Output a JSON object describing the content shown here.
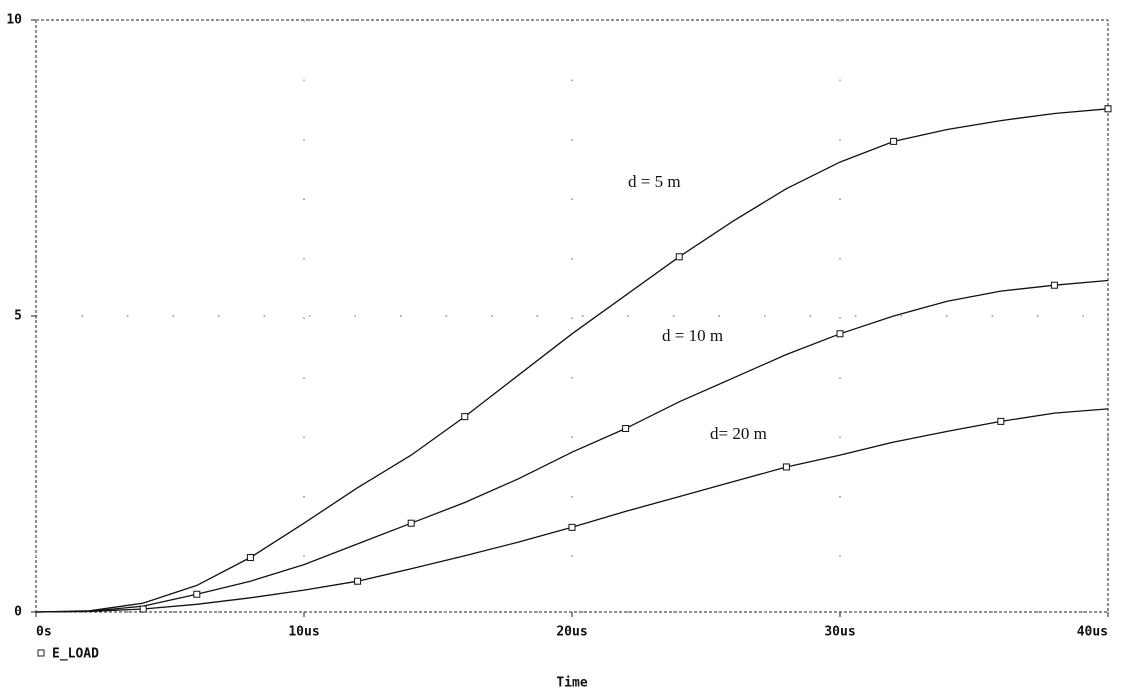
{
  "chart_data": {
    "type": "line",
    "x_label": "Time",
    "legend_label": "E_LOAD",
    "x": [
      0,
      2,
      4,
      6,
      8,
      10,
      12,
      14,
      16,
      18,
      20,
      22,
      24,
      26,
      28,
      30,
      32,
      34,
      36,
      38,
      40
    ],
    "series": [
      {
        "name": "d = 5 m",
        "color": "#111111",
        "values": [
          0,
          0.02,
          0.15,
          0.45,
          0.92,
          1.5,
          2.1,
          2.65,
          3.3,
          4.0,
          4.7,
          5.35,
          6.0,
          6.6,
          7.15,
          7.6,
          7.95,
          8.15,
          8.3,
          8.42,
          8.5
        ]
      },
      {
        "name": "d = 10 m",
        "color": "#111111",
        "values": [
          0,
          0.01,
          0.1,
          0.3,
          0.52,
          0.8,
          1.15,
          1.5,
          1.85,
          2.25,
          2.7,
          3.1,
          3.55,
          3.95,
          4.35,
          4.7,
          5.0,
          5.25,
          5.42,
          5.52,
          5.6
        ]
      },
      {
        "name": "d= 20 m",
        "color": "#111111",
        "values": [
          0,
          0.01,
          0.05,
          0.13,
          0.24,
          0.37,
          0.52,
          0.73,
          0.95,
          1.18,
          1.43,
          1.7,
          1.95,
          2.2,
          2.45,
          2.65,
          2.87,
          3.05,
          3.22,
          3.36,
          3.43
        ]
      }
    ],
    "xlim": [
      0,
      40
    ],
    "xticks": [
      {
        "value": 0,
        "label": "0s"
      },
      {
        "value": 10,
        "label": "10us"
      },
      {
        "value": 20,
        "label": "20us"
      },
      {
        "value": 30,
        "label": "30us"
      },
      {
        "value": 40,
        "label": "40us"
      }
    ],
    "ylim": [
      0,
      10
    ],
    "yticks": [
      0,
      5,
      10
    ],
    "grid": true
  }
}
